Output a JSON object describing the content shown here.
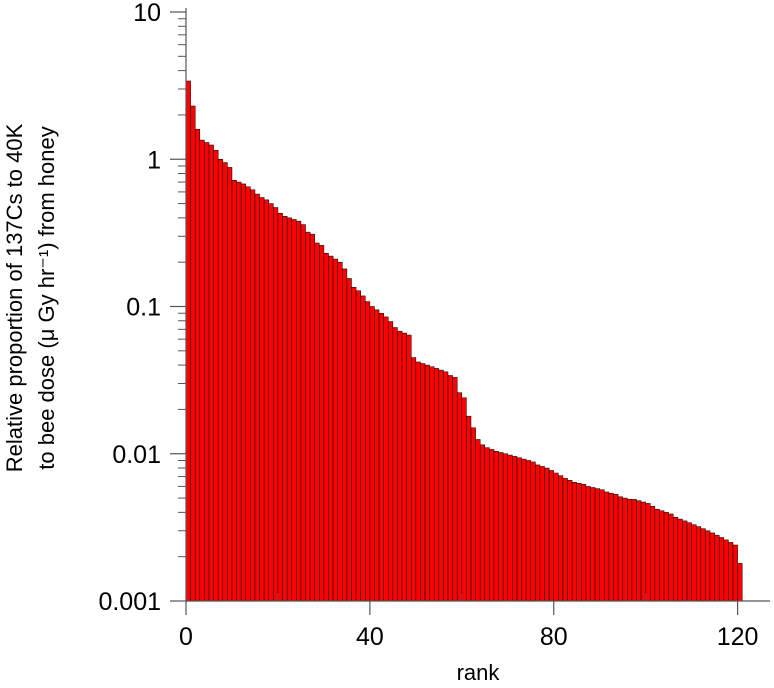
{
  "chart_data": {
    "type": "bar",
    "title": "",
    "xlabel": "rank",
    "ylabel_line1": "Relative proportion of 137Cs to 40K",
    "ylabel_line2": "to bee dose (μ Gy hr⁻¹) from honey",
    "y_scale": "log",
    "ylim": [
      0.001,
      10
    ],
    "xlim": [
      0,
      124
    ],
    "x_ticks": [
      0,
      40,
      80,
      120
    ],
    "x_tick_labels": [
      "0",
      "40",
      "80",
      "120"
    ],
    "y_ticks": [
      0.001,
      0.01,
      0.1,
      1,
      10
    ],
    "y_tick_labels": [
      "0.001",
      "0.01",
      "0.1",
      "1",
      "10"
    ],
    "bar_color": "#ff0000",
    "bar_edge_color": "#000000",
    "categories": [
      1,
      2,
      3,
      4,
      5,
      6,
      7,
      8,
      9,
      10,
      11,
      12,
      13,
      14,
      15,
      16,
      17,
      18,
      19,
      20,
      21,
      22,
      23,
      24,
      25,
      26,
      27,
      28,
      29,
      30,
      31,
      32,
      33,
      34,
      35,
      36,
      37,
      38,
      39,
      40,
      41,
      42,
      43,
      44,
      45,
      46,
      47,
      48,
      49,
      50,
      51,
      52,
      53,
      54,
      55,
      56,
      57,
      58,
      59,
      60,
      61,
      62,
      63,
      64,
      65,
      66,
      67,
      68,
      69,
      70,
      71,
      72,
      73,
      74,
      75,
      76,
      77,
      78,
      79,
      80,
      81,
      82,
      83,
      84,
      85,
      86,
      87,
      88,
      89,
      90,
      91,
      92,
      93,
      94,
      95,
      96,
      97,
      98,
      99,
      100,
      101,
      102,
      103,
      104,
      105,
      106,
      107,
      108,
      109,
      110,
      111,
      112,
      113,
      114,
      115,
      116,
      117,
      118,
      119,
      120,
      121
    ],
    "values": [
      3.4,
      2.3,
      1.6,
      1.35,
      1.3,
      1.25,
      1.15,
      1.0,
      0.95,
      0.88,
      0.72,
      0.7,
      0.68,
      0.65,
      0.62,
      0.58,
      0.55,
      0.53,
      0.5,
      0.47,
      0.43,
      0.41,
      0.4,
      0.39,
      0.38,
      0.36,
      0.32,
      0.31,
      0.27,
      0.26,
      0.23,
      0.22,
      0.21,
      0.2,
      0.18,
      0.155,
      0.135,
      0.128,
      0.118,
      0.108,
      0.1,
      0.095,
      0.09,
      0.085,
      0.079,
      0.072,
      0.068,
      0.066,
      0.064,
      0.045,
      0.042,
      0.041,
      0.04,
      0.039,
      0.038,
      0.037,
      0.036,
      0.034,
      0.033,
      0.026,
      0.024,
      0.018,
      0.015,
      0.0125,
      0.0115,
      0.011,
      0.0107,
      0.0104,
      0.0102,
      0.01,
      0.0098,
      0.0096,
      0.0094,
      0.0092,
      0.009,
      0.0088,
      0.0084,
      0.0082,
      0.008,
      0.0077,
      0.0074,
      0.0071,
      0.0068,
      0.0066,
      0.0064,
      0.0063,
      0.0062,
      0.006,
      0.0059,
      0.0058,
      0.0057,
      0.0055,
      0.0054,
      0.0053,
      0.0051,
      0.005,
      0.0049,
      0.0049,
      0.0048,
      0.0047,
      0.0046,
      0.0044,
      0.0042,
      0.0041,
      0.004,
      0.0039,
      0.0037,
      0.0036,
      0.0035,
      0.0034,
      0.0033,
      0.0032,
      0.0031,
      0.003,
      0.0029,
      0.0028,
      0.0027,
      0.0026,
      0.0025,
      0.0024,
      0.0018
    ]
  }
}
